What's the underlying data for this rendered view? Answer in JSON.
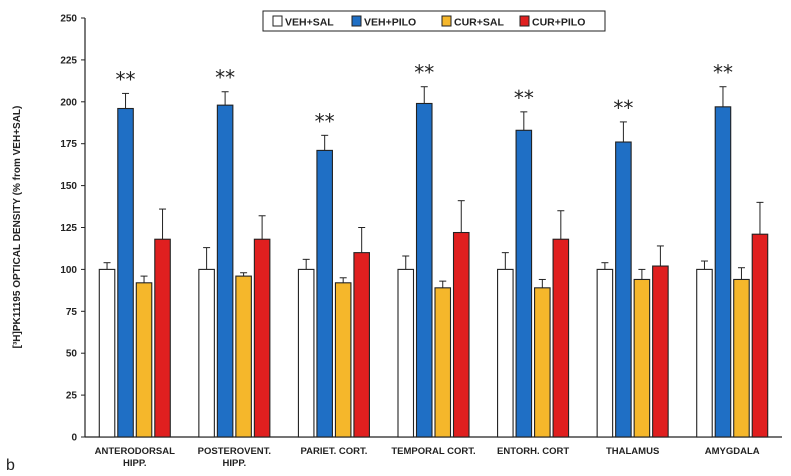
{
  "figure": {
    "panel_label": "b"
  },
  "colors": {
    "VEH+SAL": "#ffffff",
    "VEH+PILO": "#1f6fc5",
    "CUR+SAL": "#f5b72b",
    "CUR+PILO": "#e01f1f",
    "outline": "#222222"
  },
  "chart_data": {
    "type": "bar",
    "ylabel": "[³H]PK11195 OPTICAL DENSITY (% from VEH+SAL)",
    "ylim": [
      0,
      250
    ],
    "yticks": [
      0,
      25,
      50,
      75,
      100,
      125,
      150,
      175,
      200,
      225,
      250
    ],
    "legend_position": "top",
    "categories": [
      [
        "ANTERODORSAL",
        "HIPP."
      ],
      [
        "POSTEROVENT.",
        "HIPP."
      ],
      [
        "PARIET. CORT."
      ],
      [
        "TEMPORAL CORT."
      ],
      [
        "ENTORH. CORT"
      ],
      [
        "THALAMUS"
      ],
      [
        "AMYGDALA"
      ]
    ],
    "series": [
      {
        "name": "VEH+SAL",
        "values": [
          100,
          100,
          100,
          100,
          100,
          100,
          100
        ],
        "errors": [
          4,
          13,
          6,
          8,
          10,
          4,
          5
        ]
      },
      {
        "name": "VEH+PILO",
        "values": [
          196,
          198,
          171,
          199,
          183,
          176,
          197
        ],
        "errors": [
          9,
          8,
          9,
          10,
          11,
          12,
          12
        ]
      },
      {
        "name": "CUR+SAL",
        "values": [
          92,
          96,
          92,
          89,
          89,
          94,
          94
        ],
        "errors": [
          4,
          2,
          3,
          4,
          5,
          6,
          7
        ]
      },
      {
        "name": "CUR+PILO",
        "values": [
          118,
          118,
          110,
          122,
          118,
          102,
          121
        ],
        "errors": [
          18,
          14,
          15,
          19,
          17,
          12,
          19
        ]
      }
    ],
    "annotations": [
      {
        "series": "VEH+PILO",
        "category_index": 0,
        "text": "**"
      },
      {
        "series": "VEH+PILO",
        "category_index": 1,
        "text": "**"
      },
      {
        "series": "VEH+PILO",
        "category_index": 2,
        "text": "**"
      },
      {
        "series": "VEH+PILO",
        "category_index": 3,
        "text": "**"
      },
      {
        "series": "VEH+PILO",
        "category_index": 4,
        "text": "**"
      },
      {
        "series": "VEH+PILO",
        "category_index": 5,
        "text": "**"
      },
      {
        "series": "VEH+PILO",
        "category_index": 6,
        "text": "**"
      }
    ]
  }
}
